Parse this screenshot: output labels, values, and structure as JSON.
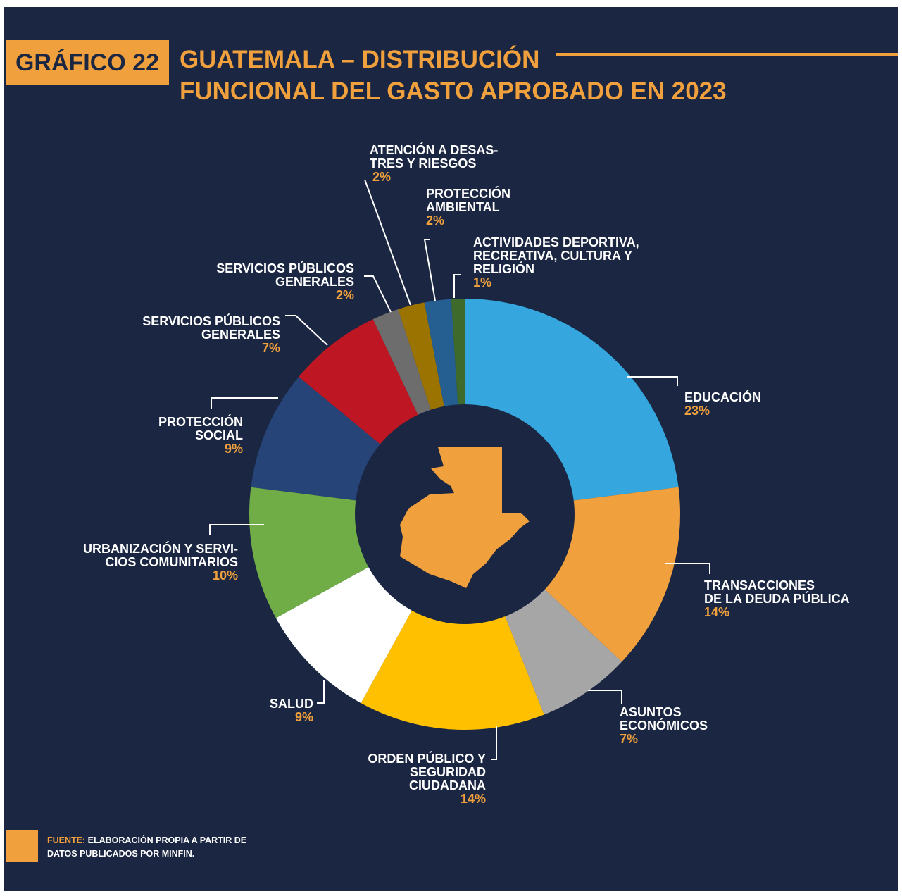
{
  "badge": "GRÁFICO 22",
  "chart_data": {
    "type": "pie",
    "donut": true,
    "title": "GUATEMALA – DISTRIBUCIÓN\nFUNCIONAL DEL GASTO APROBADO EN 2023",
    "categories": [
      "EDUCACIÓN",
      "TRANSACCIONES\nDE LA DEUDA PÚBLICA",
      "ASUNTOS\nECONÓMICOS",
      "ORDEN PÚBLICO Y\nSEGURIDAD\nCIUDADANA",
      "SALUD",
      "URBANIZACIÓN Y SERVI-\nCIOS COMUNITARIOS",
      "PROTECCIÓN\nSOCIAL",
      "SERVICIOS PÚBLICOS\nGENERALES",
      "SERVICIOS PÚBLICOS\nGENERALES",
      "ATENCIÓN A DESAS-\nTRES Y RIESGOS",
      "PROTECCIÓN\nAMBIENTAL",
      "ACTIVIDADES DEPORTIVA,\nRECREATIVA, CULTURA Y\nRELIGIÓN"
    ],
    "values": [
      23,
      14,
      7,
      14,
      9,
      10,
      9,
      7,
      2,
      2,
      2,
      1
    ],
    "value_labels": [
      "23%",
      "14%",
      "7%",
      "14%",
      "9%",
      "10%",
      "9%",
      "7%",
      "2%",
      "2%",
      "2%",
      "1%"
    ],
    "colors": [
      "#35a7de",
      "#f0a03c",
      "#a6a6a6",
      "#ffc000",
      "#ffffff",
      "#70ad47",
      "#264478",
      "#be1622",
      "#6d6d6d",
      "#9a7300",
      "#255e91",
      "#3e6a2c"
    ],
    "source_label": "FUENTE:",
    "source": "ELABORACIÓN PROPIA A PARTIR DE\nDATOS PUBLICADOS POR MINFIN."
  }
}
